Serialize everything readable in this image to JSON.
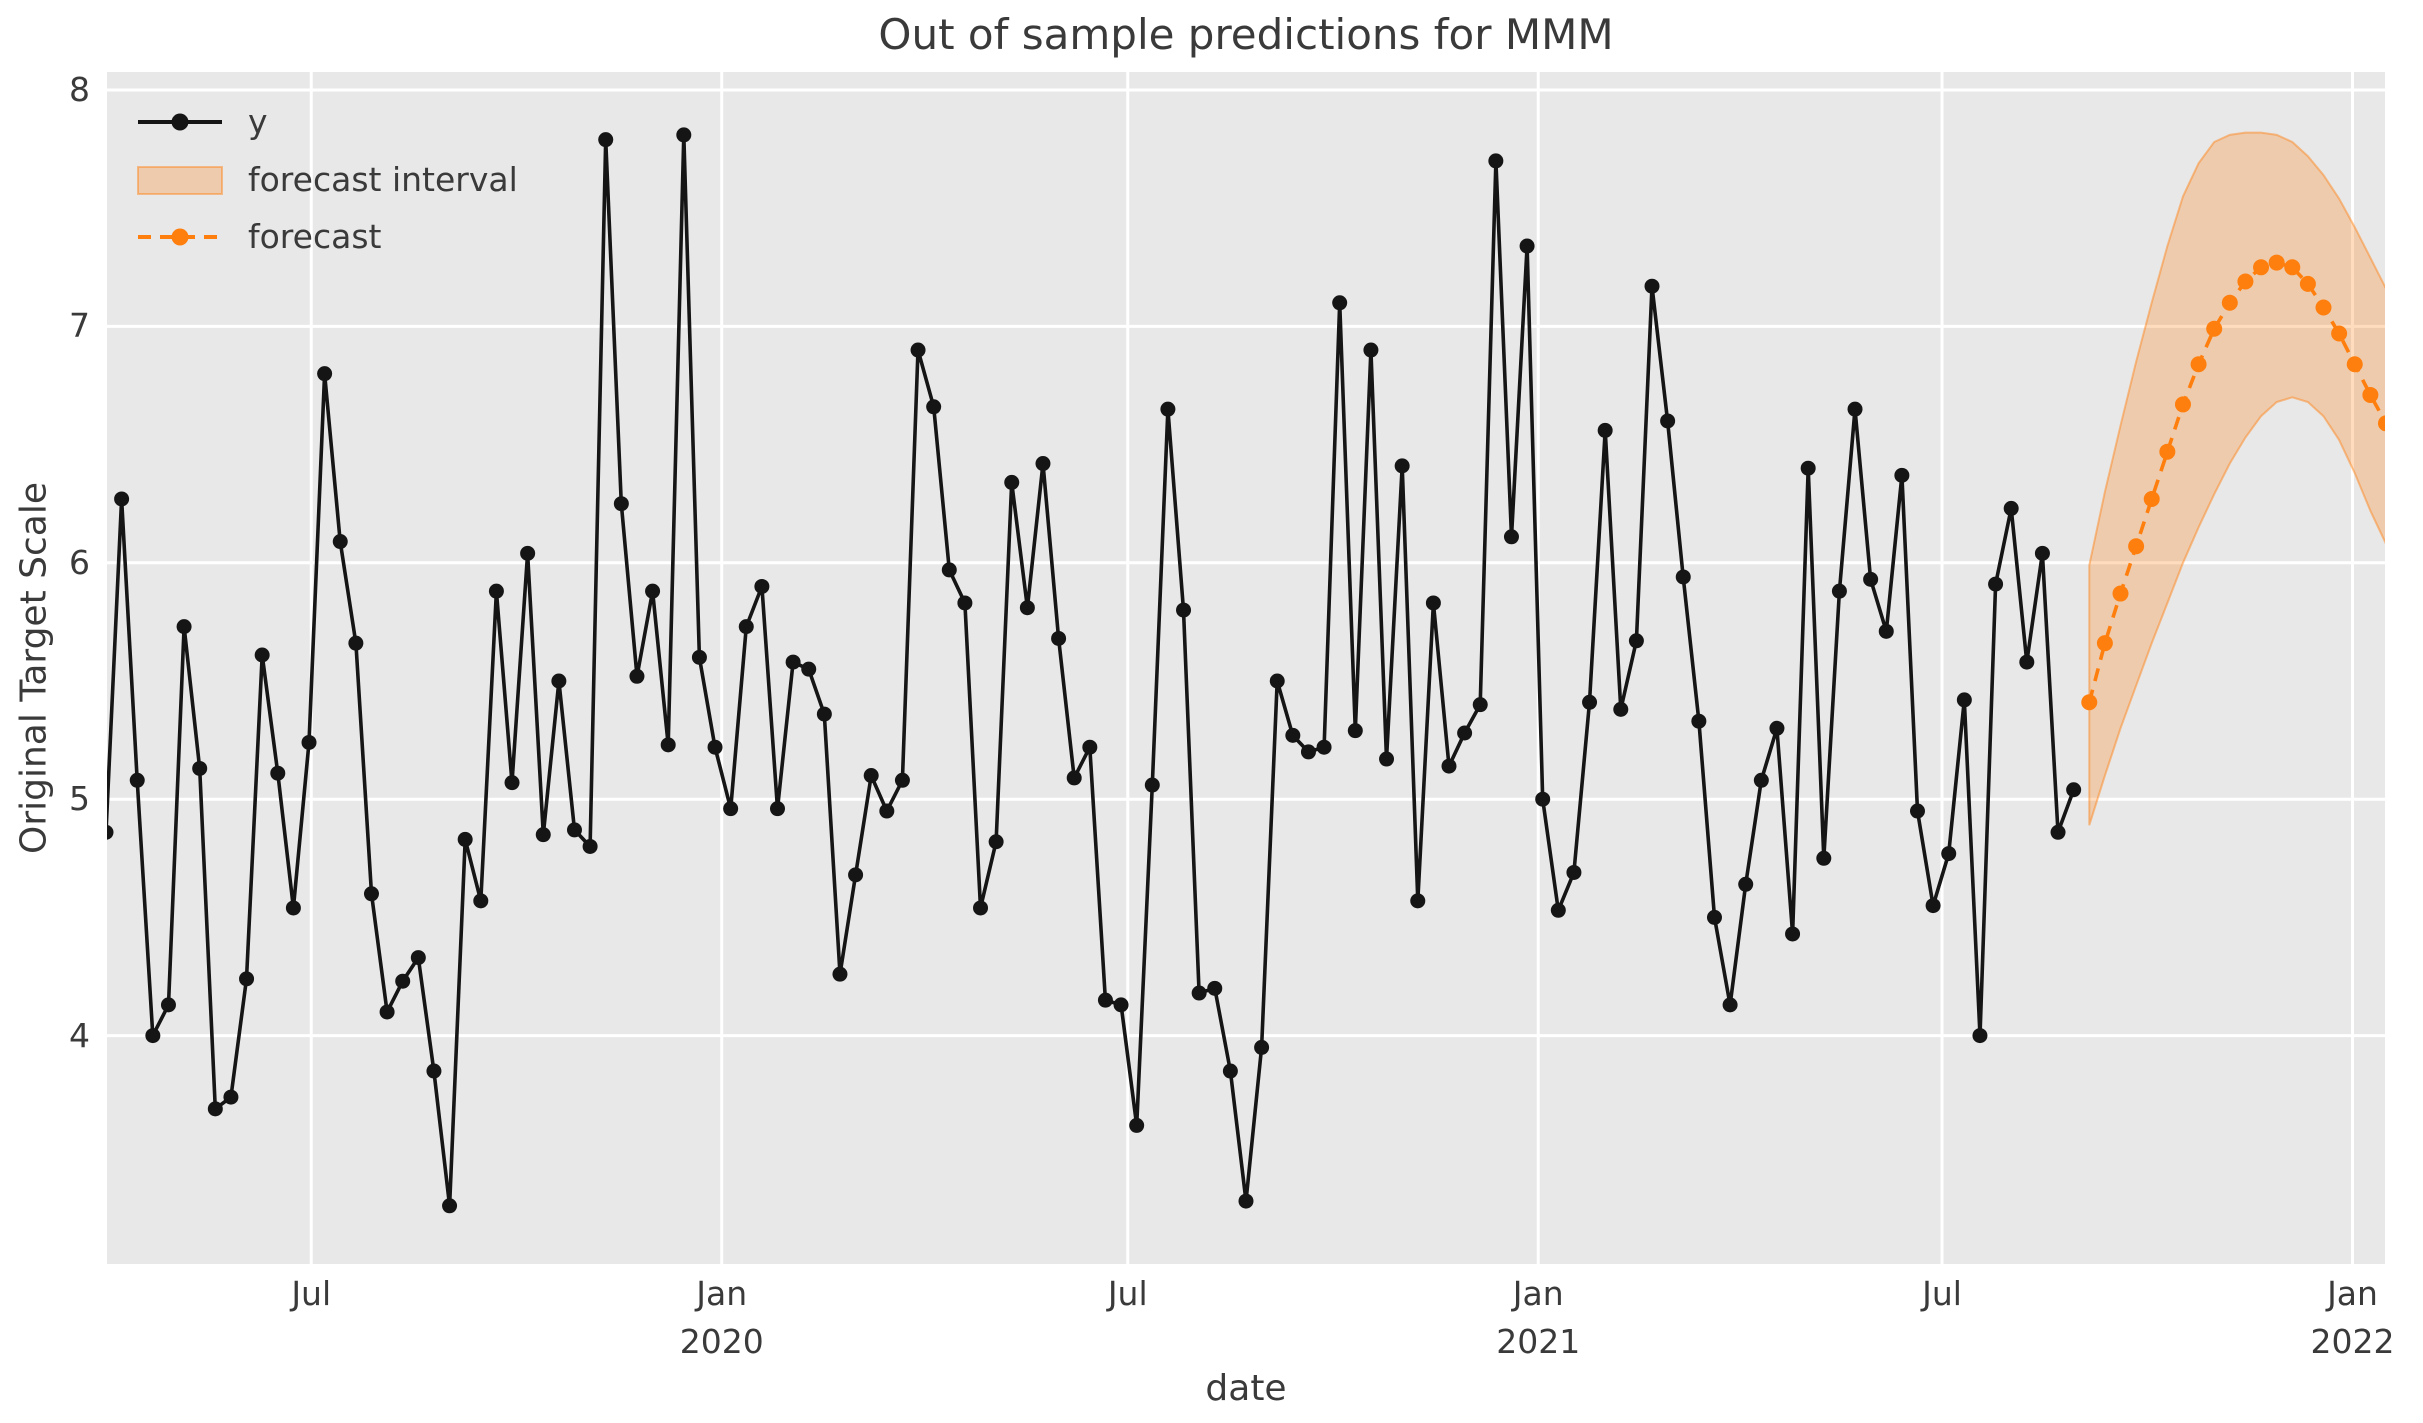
{
  "title": "Out of sample predictions for MMM",
  "legend": {
    "items": [
      {
        "label": "y",
        "swatch": "black-line-with-dot"
      },
      {
        "label": "forecast interval",
        "swatch": "peach-filled-patch"
      },
      {
        "label": "forecast",
        "swatch": "orange-dashed-line-with-dot"
      }
    ]
  },
  "colors": {
    "figure_background": "#ffffff",
    "plot_background": "#e8e8e8",
    "gridline": "#ffffff",
    "y_series": "#151515",
    "forecast_series": "#ff7f0e",
    "forecast_band_fill": "rgba(255,127,14,0.27)",
    "forecast_band_edge": "rgba(255,127,14,0.45)",
    "text": "#3a3a3a"
  },
  "chart_data": {
    "type": "line",
    "title": "Out of sample predictions for MMM",
    "xlabel": "date",
    "ylabel": "Original Target Scale",
    "grid": true,
    "legend_position": "upper left",
    "ylim": [
      3.03,
      8.08
    ],
    "yticks": [
      8,
      7,
      6,
      5,
      4
    ],
    "x_axis": {
      "start_date": "2019-03-31",
      "end_date": "2022-01-16",
      "freq_days": 7
    },
    "xticks": [
      {
        "label": "Jul",
        "sublabel": "",
        "day": 92
      },
      {
        "label": "Jan",
        "sublabel": "2020",
        "day": 276
      },
      {
        "label": "Jul",
        "sublabel": "",
        "day": 458
      },
      {
        "label": "Jan",
        "sublabel": "2021",
        "day": 642
      },
      {
        "label": "Jul",
        "sublabel": "",
        "day": 823
      },
      {
        "label": "Jan",
        "sublabel": "2022",
        "day": 1007
      }
    ],
    "series": [
      {
        "name": "y",
        "style": "solid-line-with-markers",
        "color": "#151515",
        "start_date": "2019-03-31",
        "freq_days": 7,
        "values": [
          4.86,
          6.27,
          5.08,
          4.0,
          4.13,
          5.73,
          5.13,
          3.69,
          3.74,
          4.24,
          5.61,
          5.11,
          4.54,
          5.24,
          6.8,
          6.09,
          5.66,
          4.6,
          4.1,
          4.23,
          4.33,
          3.85,
          3.28,
          4.83,
          4.57,
          5.88,
          5.07,
          6.04,
          4.85,
          5.5,
          4.87,
          4.8,
          7.79,
          6.25,
          5.52,
          5.88,
          5.23,
          7.81,
          5.6,
          5.22,
          4.96,
          5.73,
          5.9,
          4.96,
          5.58,
          5.55,
          5.36,
          4.26,
          4.68,
          5.1,
          4.95,
          5.08,
          6.9,
          6.66,
          5.97,
          5.83,
          4.54,
          4.82,
          6.34,
          5.81,
          6.42,
          5.68,
          5.09,
          5.22,
          4.15,
          4.13,
          3.62,
          5.06,
          6.65,
          5.8,
          4.18,
          4.2,
          3.85,
          3.3,
          3.95,
          5.5,
          5.27,
          5.2,
          5.22,
          7.1,
          5.29,
          6.9,
          5.17,
          6.41,
          4.57,
          5.83,
          5.14,
          5.28,
          5.4,
          7.7,
          6.11,
          7.34,
          5.0,
          4.53,
          4.69,
          5.41,
          6.56,
          5.38,
          5.67,
          7.17,
          6.6,
          5.94,
          5.33,
          4.5,
          4.13,
          4.64,
          5.08,
          5.3,
          4.43,
          6.4,
          4.75,
          5.88,
          6.65,
          5.93,
          5.71,
          6.37,
          4.95,
          4.55,
          4.77,
          5.42,
          4.0,
          5.91,
          6.23,
          5.58,
          6.04,
          4.86,
          5.04
        ]
      },
      {
        "name": "forecast",
        "style": "dashed-line-with-markers",
        "color": "#ff7f0e",
        "start_date": "2021-09-05",
        "freq_days": 7,
        "values": [
          5.41,
          5.66,
          5.87,
          6.07,
          6.27,
          6.47,
          6.67,
          6.84,
          6.99,
          7.1,
          7.19,
          7.25,
          7.27,
          7.25,
          7.18,
          7.08,
          6.97,
          6.84,
          6.71,
          6.59
        ],
        "lower": [
          4.89,
          5.1,
          5.3,
          5.48,
          5.66,
          5.83,
          6.0,
          6.15,
          6.29,
          6.42,
          6.53,
          6.62,
          6.68,
          6.7,
          6.68,
          6.62,
          6.52,
          6.38,
          6.22,
          6.08
        ],
        "upper": [
          5.99,
          6.3,
          6.58,
          6.85,
          7.1,
          7.34,
          7.55,
          7.69,
          7.78,
          7.81,
          7.82,
          7.82,
          7.81,
          7.78,
          7.72,
          7.64,
          7.54,
          7.42,
          7.29,
          7.16
        ],
        "band_name": "forecast interval"
      }
    ]
  }
}
